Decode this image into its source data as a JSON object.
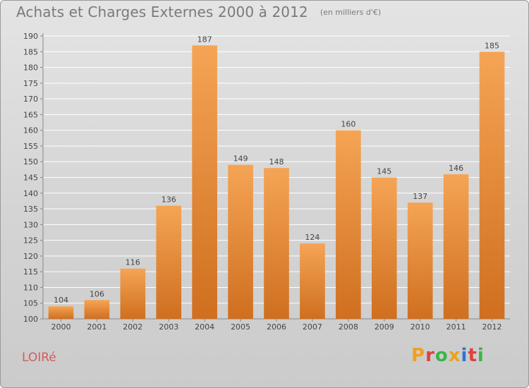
{
  "header": {
    "title": "Achats et Charges Externes 2000 à 2012",
    "unit": "(en milliers d'€)"
  },
  "footer": {
    "commune": "LOIRé",
    "logo_text": "Proxiti",
    "logo_colors": [
      "#f0a020",
      "#e04040",
      "#3cb44b",
      "#e8a31c",
      "#2f74d0",
      "#e04040",
      "#3cb44b"
    ]
  },
  "colors": {
    "bar_top": "#f5a455",
    "bar_bottom": "#cf6f1f",
    "grid": "#ffffff",
    "label": "#444444"
  },
  "chart_data": {
    "type": "bar",
    "categories": [
      "2000",
      "2001",
      "2002",
      "2003",
      "2004",
      "2005",
      "2006",
      "2007",
      "2008",
      "2009",
      "2010",
      "2011",
      "2012"
    ],
    "values": [
      104,
      106,
      116,
      136,
      187,
      149,
      148,
      124,
      160,
      145,
      137,
      146,
      185
    ],
    "data_labels": [
      "104",
      "106",
      "116",
      "136",
      "187",
      "149",
      "148",
      "124",
      "160",
      "145",
      "137",
      "146",
      "185"
    ],
    "ylim": [
      100,
      190
    ],
    "yticks": [
      "100",
      "105",
      "110",
      "115",
      "120",
      "125",
      "130",
      "135",
      "140",
      "145",
      "150",
      "155",
      "160",
      "165",
      "170",
      "175",
      "180",
      "185",
      "190"
    ],
    "grid": true,
    "title": "Achats et Charges Externes 2000 à 2012",
    "xlabel": "",
    "ylabel": ""
  }
}
